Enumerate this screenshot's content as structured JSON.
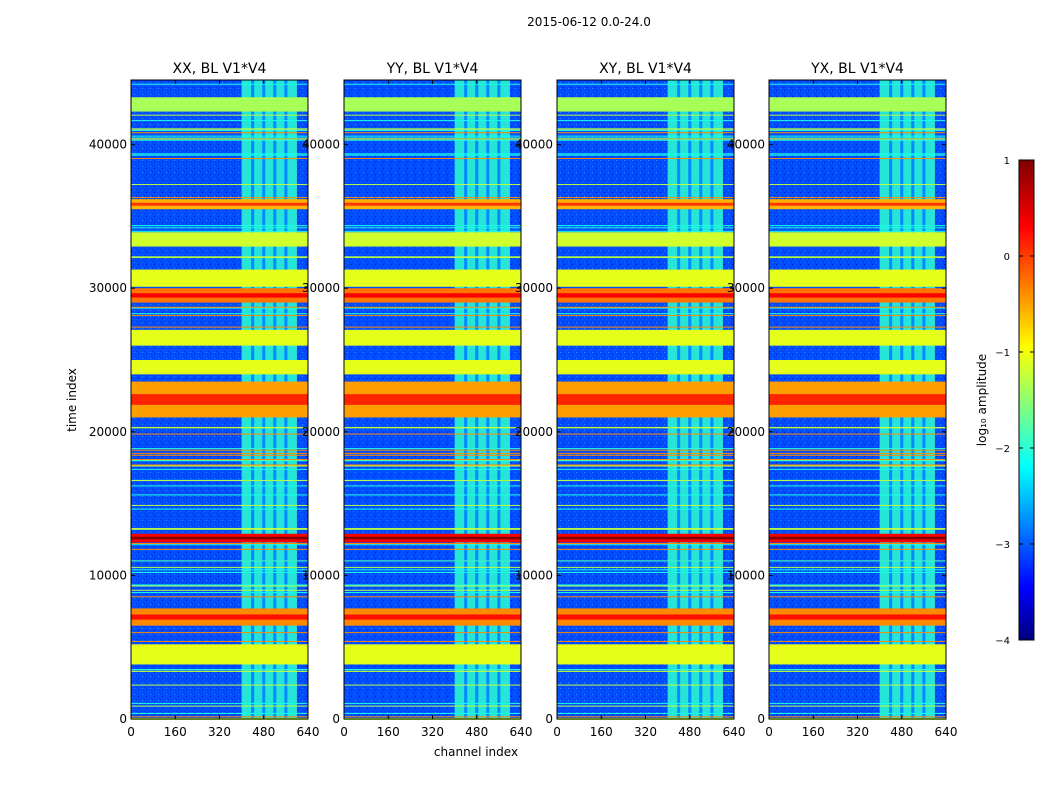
{
  "chart_data": {
    "type": "heatmap",
    "title": "2015-06-12 0.0-24.0",
    "xlabel": "channel index",
    "ylabel": "time index",
    "xlim": [
      0,
      640
    ],
    "ylim": [
      0,
      44500
    ],
    "xticks": [
      "0",
      "160",
      "320",
      "480",
      "640"
    ],
    "yticks": [
      "0",
      "10000",
      "20000",
      "30000",
      "40000"
    ],
    "panels": [
      {
        "title": "XX, BL V1*V4"
      },
      {
        "title": "YY, BL V1*V4"
      },
      {
        "title": "XY, BL V1*V4"
      },
      {
        "title": "YX, BL V1*V4"
      }
    ],
    "colorbar": {
      "label": "log₁₀ amplitude",
      "ticks": [
        "1",
        "0",
        "−1",
        "−2",
        "−3",
        "−4"
      ],
      "range": [
        -4,
        1
      ],
      "colormap": "jet"
    },
    "features": {
      "background_level": -3,
      "rfi_channel_range": [
        400,
        600
      ],
      "rfi_level": -1.9,
      "band_rows": [
        {
          "time": [
            3800,
            5200
          ],
          "level": -1.0
        },
        {
          "time": [
            6500,
            7700
          ],
          "level": -0.3
        },
        {
          "time": [
            12300,
            12900
          ],
          "level": 0.4
        },
        {
          "time": [
            21000,
            23500
          ],
          "level": -0.4
        },
        {
          "time": [
            24000,
            25000
          ],
          "level": -1.0
        },
        {
          "time": [
            26000,
            27100
          ],
          "level": -1.0
        },
        {
          "time": [
            29000,
            30000
          ],
          "level": -0.2
        },
        {
          "time": [
            30100,
            31300
          ],
          "level": -1.0
        },
        {
          "time": [
            32900,
            33900
          ],
          "level": -1.1
        },
        {
          "time": [
            35500,
            36200
          ],
          "level": -0.5
        },
        {
          "time": [
            42300,
            43300
          ],
          "level": -1.3
        }
      ]
    }
  }
}
